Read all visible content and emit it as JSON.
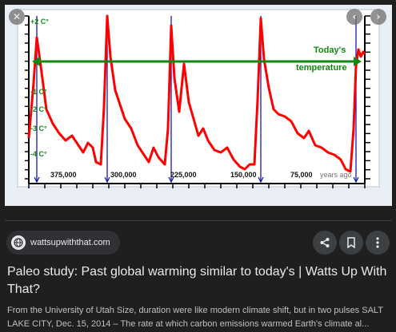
{
  "preview": {
    "chart_data": {
      "type": "line",
      "title": "",
      "xlabel": "years ago",
      "ylabel": "",
      "x_tick_labels": [
        "375,000",
        "300,000",
        "225,000",
        "150,000",
        "75,000"
      ],
      "x_unit_label": "years ago",
      "y_tick_labels": [
        "+2 C°",
        "-1 C°",
        "-2 C°",
        "-3 C°",
        "-4 C°"
      ],
      "xlim": [
        420000,
        0
      ],
      "ylim": [
        -4.5,
        2.3
      ],
      "reference_line": {
        "label_line1": "Today's",
        "label_line2": "temperature",
        "value": 0.4
      },
      "series": [
        {
          "values": [
            [
              420000,
              -2.8
            ],
            [
              414000,
              -0.5
            ],
            [
              410000,
              1.4
            ],
            [
              405000,
              0.2
            ],
            [
              398000,
              -1.6
            ],
            [
              390000,
              -2.2
            ],
            [
              382000,
              -2.6
            ],
            [
              374000,
              -2.9
            ],
            [
              366000,
              -2.7
            ],
            [
              358000,
              -3.1
            ],
            [
              352000,
              -3.4
            ],
            [
              346000,
              -3.0
            ],
            [
              340000,
              -3.2
            ],
            [
              336000,
              -3.8
            ],
            [
              330000,
              -3.9
            ],
            [
              326000,
              -1.5
            ],
            [
              322000,
              2.3
            ],
            [
              318000,
              0.6
            ],
            [
              312000,
              -0.8
            ],
            [
              306000,
              -1.4
            ],
            [
              300000,
              -2.0
            ],
            [
              292000,
              -2.4
            ],
            [
              284000,
              -3.1
            ],
            [
              276000,
              -3.5
            ],
            [
              270000,
              -3.8
            ],
            [
              264000,
              -3.2
            ],
            [
              258000,
              -3.6
            ],
            [
              250000,
              -3.9
            ],
            [
              246000,
              -2.4
            ],
            [
              242000,
              1.9
            ],
            [
              238000,
              -0.3
            ],
            [
              232000,
              -1.7
            ],
            [
              226000,
              0.3
            ],
            [
              220000,
              -1.3
            ],
            [
              214000,
              -2.0
            ],
            [
              208000,
              -2.7
            ],
            [
              202000,
              -2.4
            ],
            [
              196000,
              -2.9
            ],
            [
              188000,
              -3.3
            ],
            [
              180000,
              -3.4
            ],
            [
              172000,
              -3.2
            ],
            [
              164000,
              -3.7
            ],
            [
              156000,
              -4.0
            ],
            [
              150000,
              -4.1
            ],
            [
              144000,
              -3.9
            ],
            [
              138000,
              -3.9
            ],
            [
              134000,
              -1.2
            ],
            [
              130000,
              2.2
            ],
            [
              126000,
              0.5
            ],
            [
              120000,
              -0.7
            ],
            [
              114000,
              -1.6
            ],
            [
              108000,
              -1.8
            ],
            [
              100000,
              -1.9
            ],
            [
              92000,
              -2.1
            ],
            [
              84000,
              -2.6
            ],
            [
              76000,
              -2.8
            ],
            [
              70000,
              -2.5
            ],
            [
              62000,
              -3.1
            ],
            [
              54000,
              -3.2
            ],
            [
              46000,
              -3.4
            ],
            [
              38000,
              -3.5
            ],
            [
              30000,
              -3.7
            ],
            [
              24000,
              -4.1
            ],
            [
              18000,
              -4.2
            ],
            [
              14000,
              -2.4
            ],
            [
              11000,
              0.2
            ],
            [
              8000,
              0.9
            ],
            [
              5000,
              0.6
            ],
            [
              2000,
              0.8
            ],
            [
              0,
              0.7
            ]
          ]
        }
      ],
      "vertical_markers": [
        410000,
        322000,
        242000,
        130000,
        11000
      ],
      "colors": {
        "series": "#ff0000",
        "reference": "#118811",
        "markers": "#1a1aaa",
        "axis": "#000000",
        "background": "#ffffff"
      }
    },
    "buttons": {
      "close": "✕",
      "prev": "‹",
      "next": "›"
    }
  },
  "source": {
    "domain": "wattsupwiththat.com",
    "icon": "globe-icon"
  },
  "actions": {
    "share": "share-icon",
    "save": "bookmark-icon",
    "more": "more-vert-icon"
  },
  "result": {
    "title": "Paleo study: Past global warming similar to today's | Watts Up With That?",
    "description_line1": "From the University of Utah Size, duration were like modern climate shift, but in two pulses SALT",
    "description_line2": "LAKE CITY, Dec. 15, 2014 – The rate at which carbon emissions warmed Earth's climate al..."
  },
  "colors": {
    "page_background": "#1f1f1f",
    "chip_background": "#303134",
    "button_background": "#3c4043"
  }
}
